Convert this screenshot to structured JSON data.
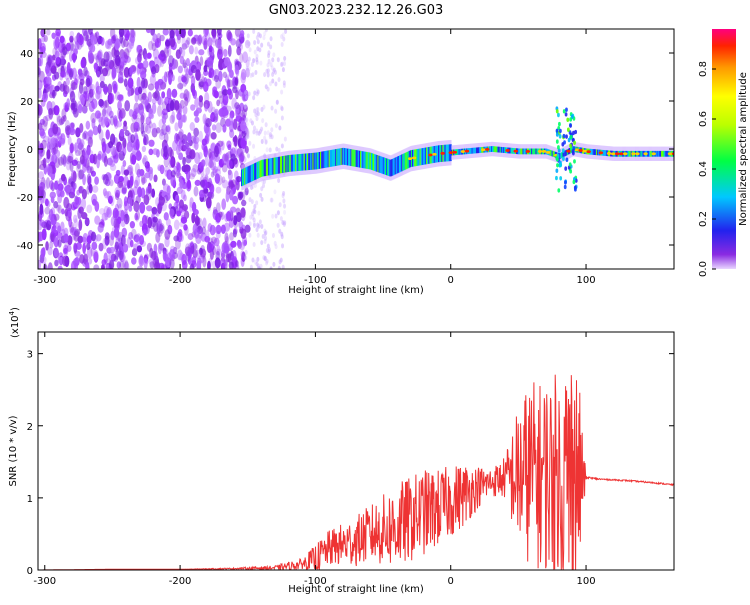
{
  "title": "GN03.2023.232.12.26.G03",
  "chart_data": [
    {
      "type": "heatmap",
      "name": "spectrogram",
      "xlabel": "Height of straight line (km)",
      "ylabel": "Frequency (Hz)",
      "xlim": [
        -305,
        165
      ],
      "ylim": [
        -50,
        50
      ],
      "xticks": [
        -300,
        -200,
        -100,
        0,
        100
      ],
      "xtick_labels": [
        "-300",
        "-200",
        "-100",
        "0",
        "100"
      ],
      "yticks": [
        -40,
        -20,
        0,
        20,
        40
      ],
      "ytick_labels": [
        "-40",
        "-20",
        "0",
        "20",
        "40"
      ],
      "colorbar": {
        "label": "Normalized spectral amplitude",
        "range": [
          0,
          0.96
        ],
        "ticks": [
          0.0,
          0.2,
          0.4,
          0.6,
          0.8
        ],
        "tick_labels": [
          "0.0",
          "0.2",
          "0.4",
          "0.6",
          "0.8"
        ]
      },
      "ridge": {
        "x": [
          -155,
          -140,
          -120,
          -100,
          -80,
          -60,
          -45,
          -30,
          -10,
          10,
          30,
          50,
          70,
          80,
          90,
          100,
          120,
          140,
          165
        ],
        "frequency": [
          -12,
          -8,
          -6,
          -5,
          -3,
          -5,
          -8,
          -4,
          -2,
          -1,
          0,
          -1,
          -1,
          -3,
          0,
          -1,
          -2,
          -2,
          -2
        ]
      }
    },
    {
      "type": "line",
      "name": "snr",
      "xlabel": "Height of straight line (km)",
      "ylabel": "SNR (10 * v/v)",
      "exponent_label": "(x10",
      "exponent": "4",
      "exponent_close": ")",
      "xlim": [
        -305,
        165
      ],
      "ylim": [
        0,
        3.3
      ],
      "xticks": [
        -300,
        -200,
        -100,
        0,
        100
      ],
      "xtick_labels": [
        "-300",
        "-200",
        "-100",
        "0",
        "100"
      ],
      "yticks": [
        0,
        1,
        2,
        3
      ],
      "ytick_labels": [
        "0",
        "1",
        "2",
        "3"
      ],
      "color": "#ee3333",
      "series": [
        {
          "x": [
            -305,
            -250,
            -200,
            -160,
            -130,
            -110,
            -100,
            -90,
            -80,
            -70,
            -60,
            -50,
            -40,
            -30,
            -20,
            -10,
            0,
            10,
            20,
            30,
            40,
            50,
            55,
            60,
            65,
            70,
            75,
            80,
            85,
            90,
            95,
            100,
            110,
            130,
            150,
            165
          ],
          "y": [
            0.0,
            0.01,
            0.01,
            0.02,
            0.03,
            0.08,
            0.15,
            0.3,
            0.35,
            0.4,
            0.5,
            0.55,
            0.6,
            0.7,
            0.8,
            0.85,
            0.95,
            1.05,
            1.15,
            1.22,
            1.28,
            1.3,
            1.32,
            1.35,
            1.3,
            1.3,
            1.3,
            1.3,
            1.3,
            1.3,
            1.28,
            1.28,
            1.26,
            1.24,
            1.21,
            1.18
          ],
          "spread": [
            0.0,
            0.0,
            0.0,
            0.01,
            0.03,
            0.08,
            0.2,
            0.25,
            0.3,
            0.35,
            0.4,
            0.5,
            0.6,
            0.6,
            0.6,
            0.55,
            0.5,
            0.45,
            0.3,
            0.2,
            0.3,
            1.0,
            1.2,
            1.3,
            1.3,
            1.4,
            1.4,
            1.5,
            1.7,
            1.9,
            1.3,
            0.02,
            0.01,
            0.01,
            0.01,
            0.01
          ]
        }
      ]
    }
  ]
}
